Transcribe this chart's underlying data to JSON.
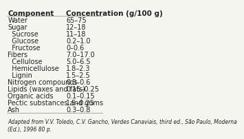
{
  "title_col1": "Component",
  "title_col2": "Concentration (g/100 g)",
  "rows": [
    [
      "Water",
      "65–75"
    ],
    [
      "Sugar",
      "12–18"
    ],
    [
      "  Sucrose",
      "11–18"
    ],
    [
      "  Glucose",
      "0.2–1.0"
    ],
    [
      "  Fructose",
      "0–0.6"
    ],
    [
      "Fibers",
      "7.0–17.0"
    ],
    [
      "  Cellulose",
      "5.0–6.5"
    ],
    [
      "  Hemicellulose",
      "1.8–2.3"
    ],
    [
      "  Lignin",
      "1.5–2.5"
    ],
    [
      "Nitrogen compounds",
      "0.3–0.6"
    ],
    [
      "Lipids (waxes and fats)",
      "0.15–0.25"
    ],
    [
      "Organic acids",
      "0.1–0.15"
    ],
    [
      "Pectic substances and gums",
      "1.5–0.25"
    ],
    [
      "Ash",
      "0.3–0.8"
    ]
  ],
  "footnote": "Adapted from V.V. Toledo, C.V. Gancho, Verdes Canaviais, third ed., São Paulo, Moderna\n(Ed.), 1996 80 p.",
  "bg_color": "#f5f5f0",
  "header_line_color": "#888888",
  "text_color": "#222222",
  "font_size": 7.0,
  "footnote_font_size": 5.5,
  "header_font_size": 7.5
}
